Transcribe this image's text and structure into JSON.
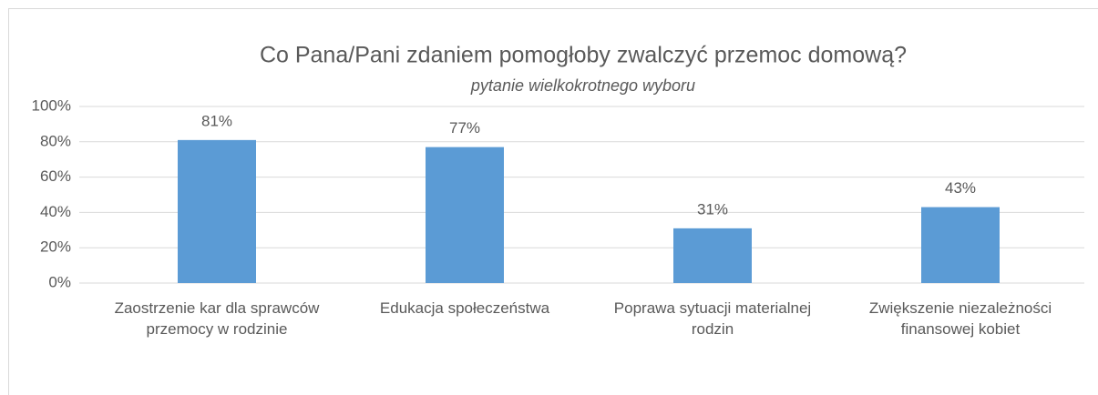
{
  "chart_data": {
    "type": "bar",
    "title": "Co Pana/Pani zdaniem pomogłoby zwalczyć przemoc domową?",
    "subtitle": "pytanie wielkokrotnego wyboru",
    "categories": [
      "Zaostrzenie kar dla sprawców przemocy w rodzinie",
      "Edukacja społeczeństwa",
      "Poprawa sytuacji materialnej rodzin",
      "Zwiększenie niezależności finansowej kobiet"
    ],
    "values": [
      81,
      77,
      31,
      43
    ],
    "value_labels": [
      "81%",
      "77%",
      "31%",
      "43%"
    ],
    "color": "#5b9bd5",
    "ylim": [
      0,
      100
    ],
    "yticks": [
      {
        "value": 0,
        "label": "0%"
      },
      {
        "value": 20,
        "label": "20%"
      },
      {
        "value": 40,
        "label": "40%"
      },
      {
        "value": 60,
        "label": "60%"
      },
      {
        "value": 80,
        "label": "80%"
      },
      {
        "value": 100,
        "label": "100%"
      }
    ],
    "grid": true
  }
}
